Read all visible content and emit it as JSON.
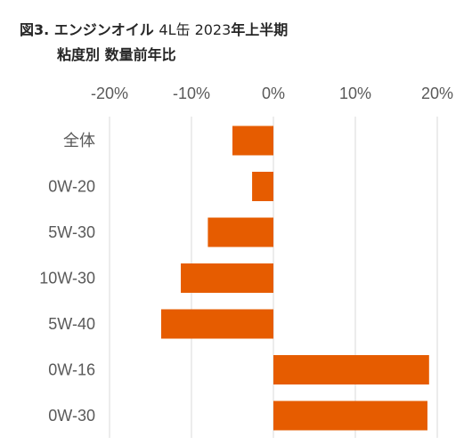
{
  "title": {
    "fig_label": "図3.",
    "line1_main": "エンジンオイル",
    "line1_light": "4L缶 2023",
    "line1_tail": "年上半期",
    "line2": "粘度別 数量前年比"
  },
  "chart_data": {
    "type": "bar",
    "orientation": "horizontal",
    "categories": [
      "全体",
      "0W-20",
      "5W-30",
      "10W-30",
      "5W-40",
      "0W-16",
      "0W-30"
    ],
    "values": [
      -5,
      -2.6,
      -8,
      -11.3,
      -13.7,
      19,
      18.8
    ],
    "value_unit": "%",
    "xlim": [
      -20,
      20
    ],
    "x_ticks": [
      -20,
      -10,
      0,
      10,
      20
    ],
    "x_tick_labels": [
      "-20%",
      "-10%",
      "0%",
      "10%",
      "20%"
    ],
    "x_axis_position": "top",
    "grid": true,
    "legend": "none",
    "bar_color": "#E65C00",
    "grid_color": "#D9D9D9"
  }
}
